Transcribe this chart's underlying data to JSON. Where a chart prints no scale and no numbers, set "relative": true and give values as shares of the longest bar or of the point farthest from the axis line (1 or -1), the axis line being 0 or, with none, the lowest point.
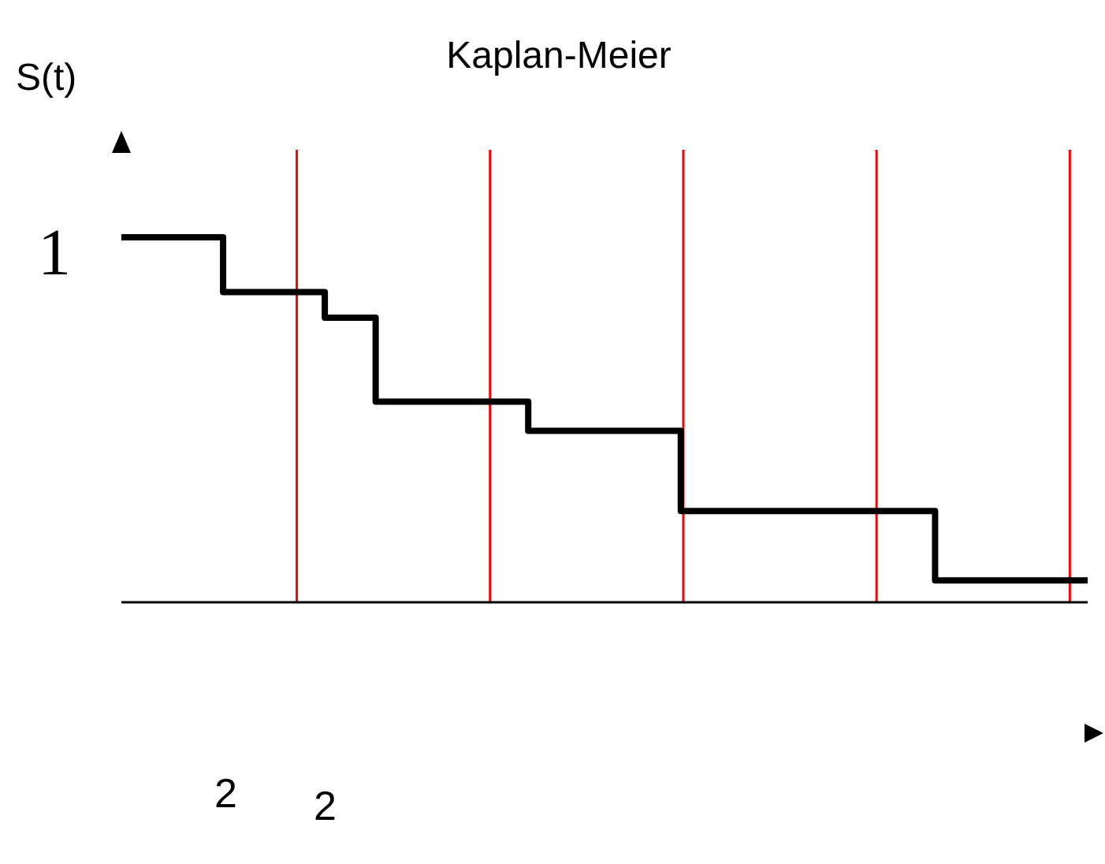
{
  "chart_data": {
    "type": "step",
    "title": "Kaplan-Meier",
    "ylabel": "S(t)",
    "relative": true,
    "grid": "x",
    "categories": [
      null,
      null,
      null,
      null,
      null,
      null,
      null,
      null,
      null,
      null,
      null,
      null,
      null,
      null,
      null,
      null,
      null,
      null,
      null,
      null
    ],
    "series": [
      {
        "color": "#000000",
        "values": [
          1,
          1,
          0.85,
          0.85,
          0.78,
          0.55,
          0.55,
          0.55,
          0.47,
          0.47,
          0.47,
          0.25,
          0.25,
          0.25,
          0.25,
          0.25,
          0.06,
          0.06,
          0.06,
          0.06
        ]
      }
    ],
    "annotations": [
      "1",
      "2",
      "2"
    ]
  }
}
